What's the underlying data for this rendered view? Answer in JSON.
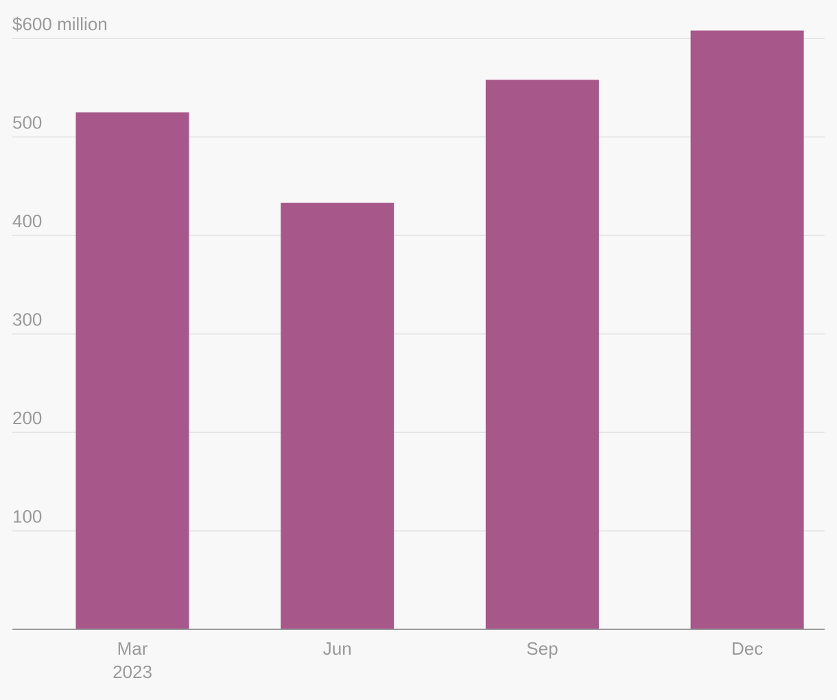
{
  "chart_data": {
    "type": "bar",
    "categories": [
      "Mar",
      "Jun",
      "Sep",
      "Dec"
    ],
    "year": "2023",
    "values": [
      525,
      433,
      558,
      608
    ],
    "color": "#a8578a",
    "ylim": [
      0,
      600
    ],
    "yticks": [
      100,
      200,
      300,
      400,
      500,
      {
        "value": 600,
        "label": "$600 million"
      }
    ],
    "grid": true
  }
}
